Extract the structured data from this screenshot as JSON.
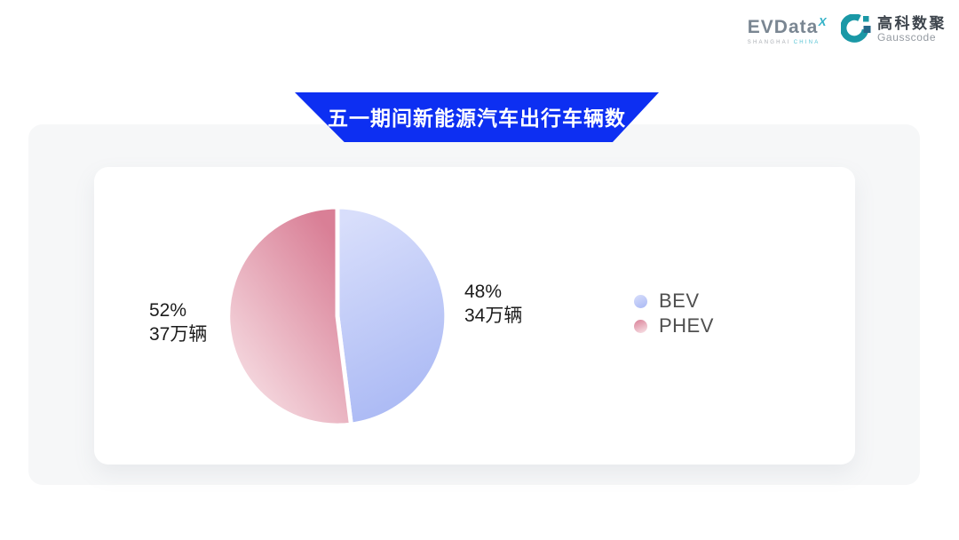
{
  "logos": {
    "evdata": {
      "text": "EVData",
      "superscript": "X",
      "tagline_left": "SHANGHAI",
      "tagline_right": "CHINA"
    },
    "gausscode": {
      "cn": "高科数聚",
      "en": "Gausscode"
    }
  },
  "banner": {
    "title": "五一期间新能源汽车出行车辆数",
    "color": "#0d2ff2"
  },
  "colors": {
    "panel_bg": "#f6f7f8",
    "card_bg": "#ffffff",
    "teal_accent": "#1a98a6",
    "banner_blue": "#0d2ff2"
  },
  "chart_data": {
    "type": "pie",
    "title": "五一期间新能源汽车出行车辆数",
    "legend_position": "right",
    "start_angle_deg": 0,
    "direction": "clockwise",
    "slice_gap_color": "#ffffff",
    "series": [
      {
        "name": "BEV",
        "percent": 48,
        "value": 34,
        "unit": "万辆",
        "percent_label": "48%",
        "value_label": "34万辆",
        "color_start": "#d8defb",
        "color_end": "#a9b8f4",
        "gradient": {
          "x1": 0.3,
          "y1": 0,
          "x2": 0.55,
          "y2": 1
        }
      },
      {
        "name": "PHEV",
        "percent": 52,
        "value": 37,
        "unit": "万辆",
        "percent_label": "52%",
        "value_label": "37万辆",
        "color_start": "#d97f96",
        "color_end": "#f9e6ea",
        "gradient": {
          "x1": 0.75,
          "y1": 0.05,
          "x2": 0.05,
          "y2": 0.95
        }
      }
    ]
  }
}
